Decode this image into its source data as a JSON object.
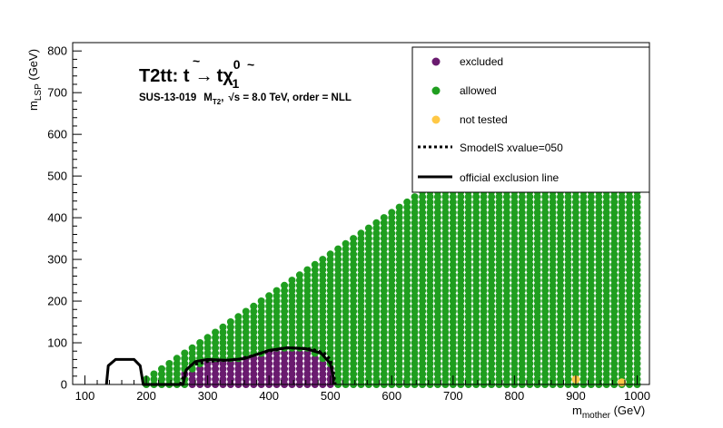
{
  "chart_data": {
    "type": "scatter",
    "title_main": "T2tt: t̃ → tχ̃₁⁰",
    "title_main_parts": {
      "prefix": "T2tt: ",
      "stop": "t",
      "arrow": "→",
      "t": "t",
      "chi": "χ",
      "sup": "0",
      "sub": "1"
    },
    "subtitle": {
      "analysis": "SUS-13-019",
      "var_main": "M",
      "var_sub": "T2",
      "sep": ",",
      "sqrt": "√s",
      "energy": " =  8.0 TeV, order =  NLL"
    },
    "xlabel": {
      "main": "m",
      "sub": "mother",
      "unit": " (GeV)"
    },
    "ylabel": {
      "main": "m",
      "sub": "LSP",
      "unit": " (GeV)"
    },
    "xlim": [
      80,
      1020
    ],
    "ylim": [
      0,
      820
    ],
    "xticks": [
      100,
      200,
      300,
      400,
      500,
      600,
      700,
      800,
      900,
      1000
    ],
    "yticks": [
      0,
      100,
      200,
      300,
      400,
      500,
      600,
      700,
      800
    ],
    "grid": false,
    "legend_position": "top-right",
    "legend": [
      {
        "label": "excluded",
        "kind": "marker",
        "color": "#6a1b6f"
      },
      {
        "label": "allowed",
        "kind": "marker",
        "color": "#1f9e1f"
      },
      {
        "label": "not tested",
        "kind": "marker",
        "color": "#ffc845"
      },
      {
        "label": "SmodelS xvalue=050",
        "kind": "dashed-line",
        "color": "#000000"
      },
      {
        "label": " official exclusion line",
        "kind": "solid-line",
        "color": "#000000"
      }
    ],
    "series": [
      {
        "name": "allowed",
        "color": "#1f9e1f",
        "rule": "grid x=200..1000 step 12.5, y=0..(x-180) step 12.5 outside excluded region"
      },
      {
        "name": "excluded",
        "color": "#6a1b6f",
        "region": [
          [
            262,
            25
          ],
          [
            300,
            50
          ],
          [
            350,
            60
          ],
          [
            400,
            75
          ],
          [
            450,
            80
          ],
          [
            480,
            70
          ],
          [
            510,
            25
          ],
          [
            505,
            0
          ],
          [
            275,
            0
          ],
          [
            262,
            25
          ]
        ]
      },
      {
        "name": "not tested",
        "color": "#ffc845",
        "points": [
          [
            900,
            12
          ],
          [
            975,
            5
          ]
        ]
      }
    ],
    "smodels_line": [
      [
        255,
        0
      ],
      [
        262,
        25
      ],
      [
        270,
        45
      ],
      [
        300,
        55
      ],
      [
        350,
        60
      ],
      [
        400,
        80
      ],
      [
        430,
        88
      ],
      [
        470,
        85
      ],
      [
        490,
        75
      ],
      [
        500,
        60
      ],
      [
        505,
        30
      ],
      [
        508,
        0
      ]
    ],
    "official_line": [
      [
        135,
        0
      ],
      [
        138,
        45
      ],
      [
        150,
        60
      ],
      [
        180,
        60
      ],
      [
        190,
        45
      ],
      [
        195,
        0
      ],
      [
        260,
        0
      ],
      [
        265,
        35
      ],
      [
        280,
        55
      ],
      [
        300,
        60
      ],
      [
        330,
        58
      ],
      [
        360,
        62
      ],
      [
        400,
        82
      ],
      [
        430,
        88
      ],
      [
        460,
        86
      ],
      [
        485,
        75
      ],
      [
        500,
        50
      ],
      [
        505,
        15
      ],
      [
        505,
        0
      ]
    ],
    "colors": {
      "excluded": "#6a1b6f",
      "allowed": "#1f9e1f",
      "not_tested": "#ffc845"
    }
  }
}
